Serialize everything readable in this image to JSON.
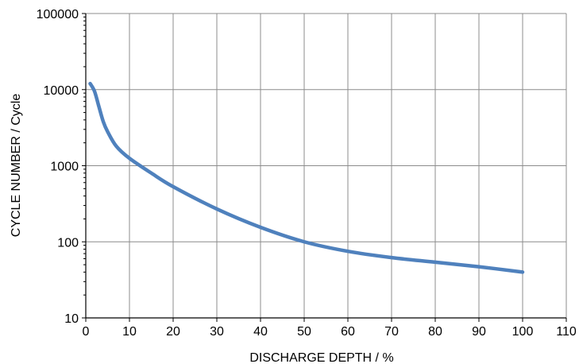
{
  "chart_data": {
    "type": "line",
    "title": "",
    "xlabel": "DISCHARGE DEPTH / %",
    "ylabel": "CYCLE NUMBER / Cycle",
    "xlim": [
      0,
      110
    ],
    "ylim": [
      10,
      100000
    ],
    "yscale": "log",
    "x_ticks": [
      0,
      10,
      20,
      30,
      40,
      50,
      60,
      70,
      80,
      90,
      100,
      110
    ],
    "x_tick_labels": [
      "0",
      "10",
      "20",
      "30",
      "40",
      "50",
      "60",
      "70",
      "80",
      "90",
      "100",
      "110"
    ],
    "y_ticks": [
      10,
      100,
      1000,
      10000,
      100000
    ],
    "y_tick_labels": [
      "10",
      "100",
      "1000",
      "10000",
      "100000"
    ],
    "grid": true,
    "legend": "none",
    "series": [
      {
        "color": "#4f81bd",
        "x": [
          1,
          2,
          3,
          4,
          5,
          7,
          10,
          15,
          20,
          30,
          40,
          50,
          60,
          70,
          80,
          90,
          100
        ],
        "y": [
          12000,
          9500,
          6000,
          3800,
          2800,
          1800,
          1250,
          800,
          530,
          270,
          155,
          100,
          75,
          62,
          54,
          47,
          40
        ]
      }
    ]
  }
}
